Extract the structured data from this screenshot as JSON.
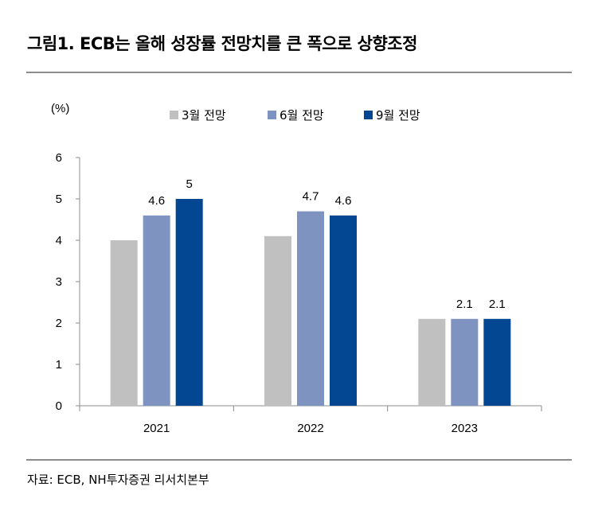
{
  "title": "그림1. ECB는 올해 성장률 전망치를 큰 폭으로 상향조정",
  "source": "자료: ECB, NH투자증권 리서치본부",
  "chart_data": {
    "type": "bar",
    "unit_label": "(%)",
    "categories": [
      "2021",
      "2022",
      "2023"
    ],
    "series": [
      {
        "name": "3월 전망",
        "color": "#c0c0c0",
        "values": [
          4.0,
          4.1,
          2.1
        ],
        "labels": [
          "",
          "",
          ""
        ]
      },
      {
        "name": "6월 전망",
        "color": "#7f93c0",
        "values": [
          4.6,
          4.7,
          2.1
        ],
        "labels": [
          "4.6",
          "4.7",
          "2.1"
        ]
      },
      {
        "name": "9월 전망",
        "color": "#034793",
        "values": [
          5.0,
          4.6,
          2.1
        ],
        "labels": [
          "5",
          "4.6",
          "2.1"
        ]
      }
    ],
    "ylim": [
      0,
      6
    ],
    "yticks": [
      "0",
      "1",
      "2",
      "3",
      "4",
      "5",
      "6"
    ],
    "legend_position": "top",
    "grid": false
  }
}
